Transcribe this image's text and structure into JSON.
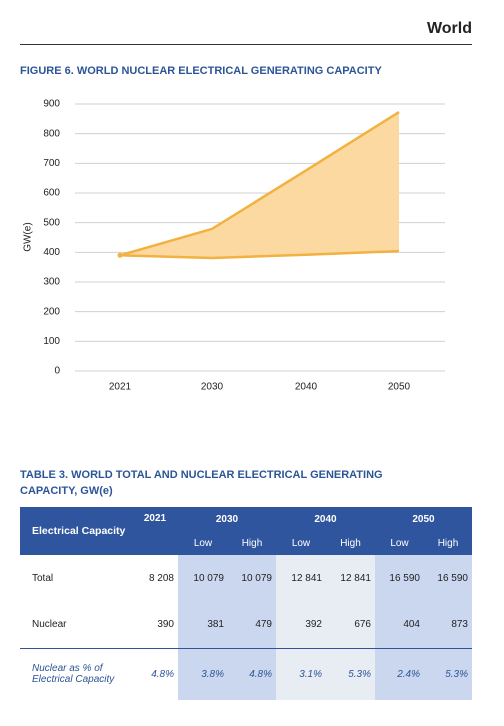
{
  "header": {
    "region": "World"
  },
  "figure": {
    "chart_data": {
      "type": "range-area",
      "title": "FIGURE 6. WORLD NUCLEAR ELECTRICAL GENERATING CAPACITY",
      "y_label": "GW(e)",
      "categories": [
        "2021",
        "2030",
        "2040",
        "2050"
      ],
      "series": [
        {
          "color": "#f2b141",
          "values": [
            390,
            381,
            392,
            404
          ]
        },
        {
          "color": "#f2b141",
          "values": [
            390,
            479,
            676,
            873
          ]
        }
      ],
      "fill_color": "#fdd9a2",
      "ylim": [
        0,
        900
      ],
      "yticks": [
        0,
        100,
        200,
        300,
        400,
        500,
        600,
        700,
        800,
        900
      ],
      "grid": true
    }
  },
  "table": {
    "title": "TABLE 3. WORLD TOTAL AND NUCLEAR ELECTRICAL GENERATING CAPACITY, GW(e)",
    "header": {
      "label": "Electrical Capacity",
      "years": [
        "2021",
        "2030",
        "2040",
        "2050"
      ],
      "sub": [
        "Low",
        "High",
        "Low",
        "High",
        "Low",
        "High"
      ]
    },
    "rows": [
      [
        "Total",
        "8 208",
        "10 079",
        "10 079",
        "12 841",
        "12 841",
        "16 590",
        "16 590"
      ],
      [
        "Nuclear",
        "390",
        "381",
        "479",
        "392",
        "676",
        "404",
        "873"
      ],
      [
        "Nuclear as % of Electrical Capacity",
        "4.8%",
        "3.8%",
        "4.8%",
        "3.1%",
        "5.3%",
        "2.4%",
        "5.3%"
      ]
    ]
  }
}
